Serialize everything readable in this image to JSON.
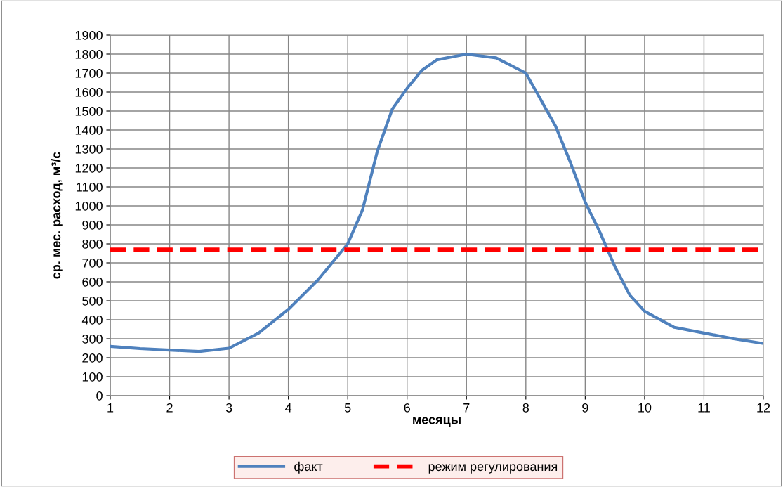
{
  "chart_data": {
    "type": "line",
    "xlabel": "месяцы",
    "ylabel": "ср. мес. расход, м³/с",
    "series": [
      {
        "name": "факт",
        "color": "#4f81bd",
        "line_style": "solid",
        "x": [
          1,
          1.5,
          2,
          2.5,
          3,
          3.5,
          4,
          4.5,
          5,
          5.25,
          5.5,
          5.75,
          6,
          6.25,
          6.5,
          7,
          7.5,
          8,
          8.5,
          8.75,
          9,
          9.25,
          9.5,
          9.75,
          10,
          10.5,
          11,
          11.5,
          12
        ],
        "values": [
          260,
          248,
          240,
          233,
          250,
          330,
          455,
          610,
          800,
          980,
          1290,
          1510,
          1620,
          1715,
          1770,
          1800,
          1780,
          1700,
          1420,
          1230,
          1020,
          860,
          680,
          530,
          445,
          360,
          330,
          300,
          275
        ]
      },
      {
        "name": "режим регулирования",
        "color": "#ff0000",
        "line_style": "dashed",
        "x": [
          1,
          12
        ],
        "values": [
          770,
          770
        ]
      }
    ],
    "xlim": [
      1,
      12
    ],
    "xticks": [
      1,
      2,
      3,
      4,
      5,
      6,
      7,
      8,
      9,
      10,
      11,
      12
    ],
    "ylim": [
      0,
      1900
    ],
    "yticks": [
      0,
      100,
      200,
      300,
      400,
      500,
      600,
      700,
      800,
      900,
      1000,
      1100,
      1200,
      1300,
      1400,
      1500,
      1600,
      1700,
      1800,
      1900
    ],
    "grid": true,
    "legend": "bottom",
    "marker": "none"
  }
}
